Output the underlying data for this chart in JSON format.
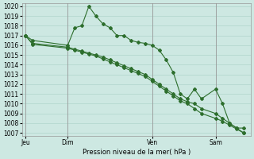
{
  "xlabel": "Pression niveau de la mer( hPa )",
  "bg_color": "#cde8e2",
  "grid_color": "#b0d4cc",
  "line_color": "#2d6e2d",
  "ylim": [
    1007,
    1020
  ],
  "yticks": [
    1007,
    1008,
    1009,
    1010,
    1011,
    1012,
    1013,
    1014,
    1015,
    1016,
    1017,
    1018,
    1019,
    1020
  ],
  "x_tick_labels": [
    "Jeu",
    "Dim",
    "Ven",
    "Sam"
  ],
  "x_tick_positions": [
    0,
    6,
    18,
    27
  ],
  "x_vlines": [
    0,
    6,
    18,
    27
  ],
  "xlim": [
    -0.5,
    32
  ],
  "series1_x": [
    0,
    1,
    6,
    7,
    8,
    9,
    10,
    11,
    12,
    13,
    14,
    15,
    16,
    17,
    18,
    19,
    20,
    21,
    22,
    23,
    24,
    25,
    27,
    28,
    29,
    30,
    31
  ],
  "series1_y": [
    1017.0,
    1016.5,
    1016.0,
    1017.8,
    1018.0,
    1020.0,
    1019.0,
    1018.2,
    1017.8,
    1017.0,
    1017.0,
    1016.5,
    1016.3,
    1016.2,
    1016.0,
    1015.5,
    1014.5,
    1013.2,
    1011.0,
    1010.5,
    1011.5,
    1010.5,
    1011.5,
    1010.0,
    1008.0,
    1007.5,
    1007.5
  ],
  "series2_x": [
    0,
    1,
    6,
    7,
    8,
    9,
    10,
    11,
    12,
    13,
    14,
    15,
    16,
    17,
    18,
    19,
    20,
    21,
    22,
    23,
    24,
    25,
    27,
    28,
    29,
    30,
    31
  ],
  "series2_y": [
    1017.0,
    1016.2,
    1015.8,
    1015.6,
    1015.4,
    1015.2,
    1015.0,
    1014.8,
    1014.5,
    1014.2,
    1013.9,
    1013.6,
    1013.3,
    1013.0,
    1012.5,
    1012.0,
    1011.5,
    1011.0,
    1010.5,
    1010.2,
    1010.0,
    1009.5,
    1009.0,
    1008.5,
    1008.0,
    1007.5,
    1007.0
  ],
  "series3_x": [
    0,
    1,
    6,
    7,
    8,
    9,
    10,
    11,
    12,
    13,
    14,
    15,
    16,
    17,
    18,
    19,
    20,
    21,
    22,
    23,
    24,
    25,
    27,
    28,
    29,
    30,
    31
  ],
  "series3_y": [
    1017.0,
    1016.1,
    1015.7,
    1015.5,
    1015.3,
    1015.1,
    1014.9,
    1014.6,
    1014.3,
    1014.0,
    1013.7,
    1013.4,
    1013.1,
    1012.8,
    1012.3,
    1011.8,
    1011.3,
    1010.8,
    1010.3,
    1010.0,
    1009.5,
    1009.0,
    1008.5,
    1008.2,
    1007.8,
    1007.4,
    1007.0
  ]
}
